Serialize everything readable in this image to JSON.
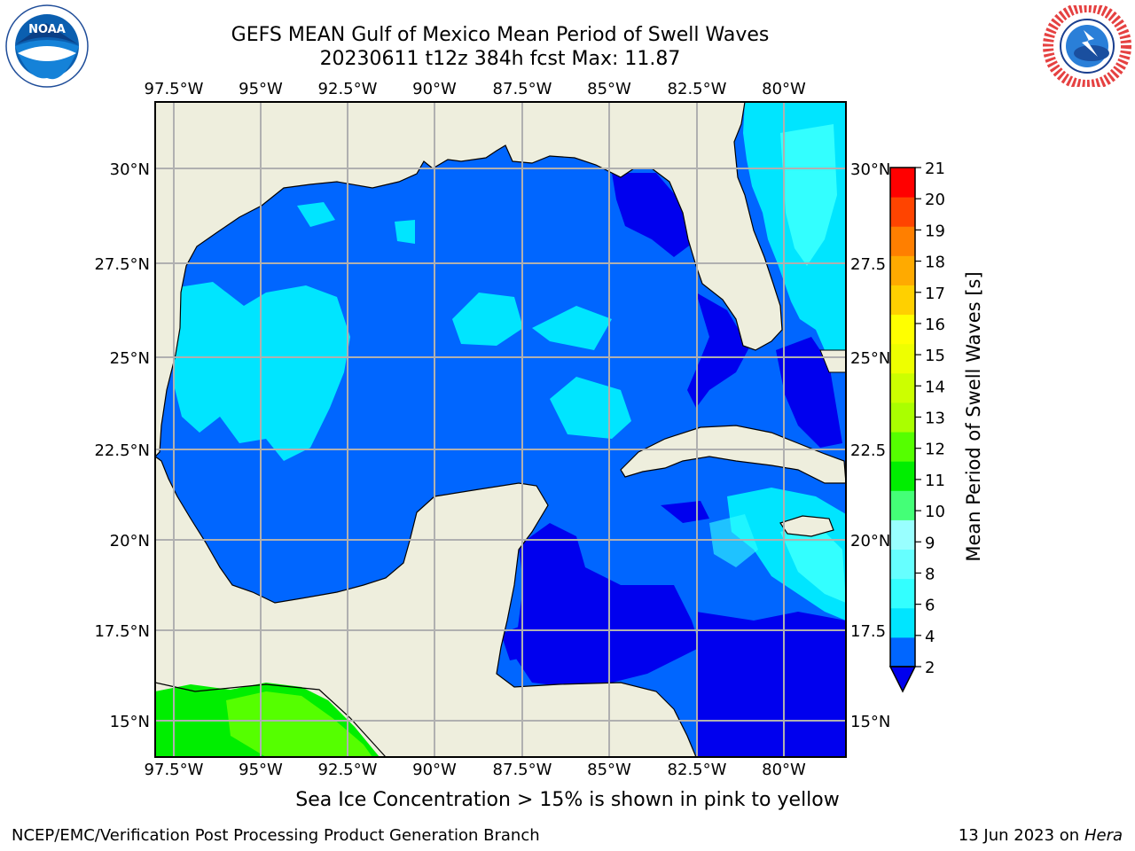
{
  "header": {
    "title_line1": "GEFS MEAN Gulf of Mexico Mean Period of Swell Waves",
    "title_line2": "20230611 t12z 384h fcst   Max: 11.87"
  },
  "map": {
    "lon_labels": [
      "97.5°W",
      "95°W",
      "92.5°W",
      "90°W",
      "87.5°W",
      "85°W",
      "82.5°W",
      "80°W"
    ],
    "lat_labels_left": [
      "30°N",
      "27.5°N",
      "25°N",
      "22.5°N",
      "20°N",
      "17.5°N",
      "15°N"
    ],
    "lat_labels_right": [
      "30°N",
      "27.5",
      "25°N",
      "22.5",
      "20°N",
      "17.5",
      "15°N"
    ]
  },
  "colorbar": {
    "label": "Mean Period of Swell Waves [s]",
    "ticks": [
      "2",
      "4",
      "6",
      "8",
      "9",
      "10",
      "11",
      "12",
      "13",
      "14",
      "15",
      "16",
      "17",
      "18",
      "19",
      "20",
      "21"
    ],
    "colors": [
      "#0066ff",
      "#00e5ff",
      "#33ffff",
      "#66ffff",
      "#99ffff",
      "#44ff77",
      "#00ee00",
      "#55ff00",
      "#aaff00",
      "#ccff00",
      "#eeff00",
      "#ffff00",
      "#ffd000",
      "#ffaa00",
      "#ff7f00",
      "#ff4400",
      "#ff0000"
    ],
    "underflow_color": "#0000ee"
  },
  "colors": {
    "land": "#eeeedd",
    "grid": "#b0b0b0",
    "sea_base": "#0066ff",
    "sea_low": "#0000ee",
    "sea_mid": "#00e5ff",
    "sea_high": "#33ffff",
    "pacific_green": "#00ee00",
    "pacific_lime": "#55ff00"
  },
  "footer": {
    "note": "Sea Ice Concentration > 15% is shown in pink to yellow",
    "credit": "NCEP/EMC/Verification Post Processing Product Generation Branch",
    "date": "13 Jun 2023 on",
    "host": "Hera"
  },
  "logos": {
    "left": "NOAA",
    "right": "NATIONAL WEATHER SERVICE"
  }
}
